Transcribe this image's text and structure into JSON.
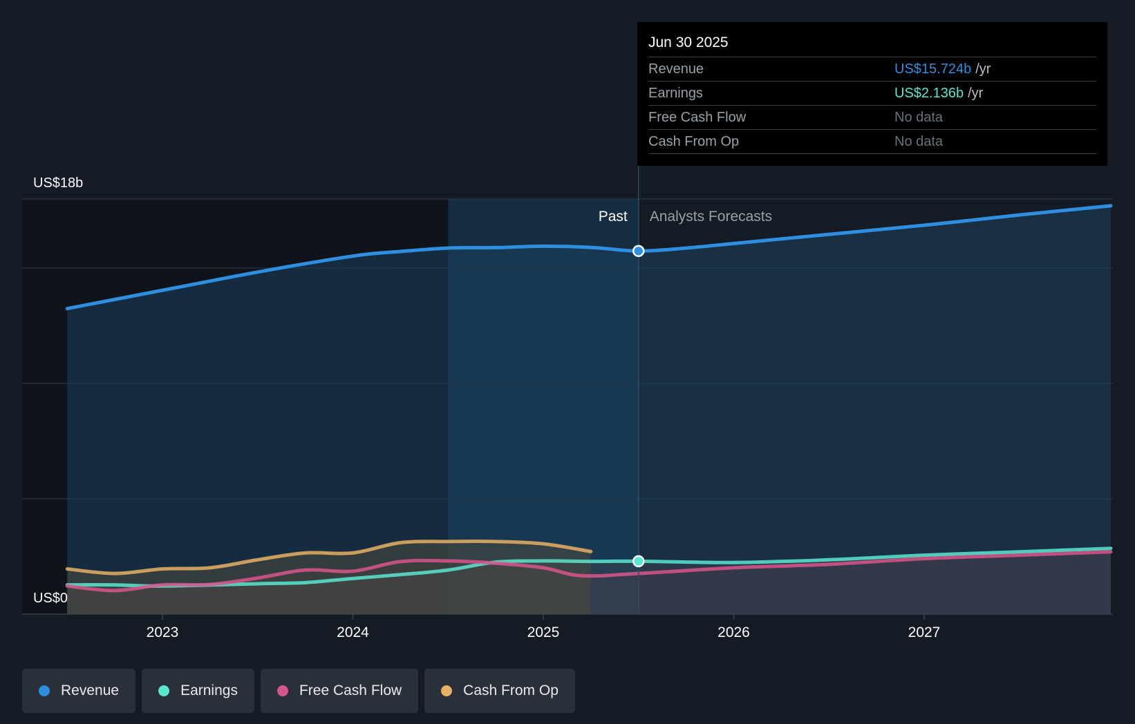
{
  "chart_data": {
    "type": "area",
    "title": "",
    "y_axis": {
      "top_label": "US$18b",
      "bottom_label": "US$0",
      "ylim": [
        0,
        18
      ]
    },
    "x_axis": {
      "ticks": [
        "2023",
        "2024",
        "2025",
        "2026",
        "2027"
      ],
      "tick_values": [
        2023,
        2024,
        2025,
        2026,
        2027
      ],
      "xlim": [
        2022.3,
        2027.98
      ]
    },
    "divider": {
      "x": 2025.5,
      "past_label": "Past",
      "forecast_label": "Analysts Forecasts",
      "highlight_start": 2024.5
    },
    "series": [
      {
        "name": "Revenue",
        "color": "#2e8fe0",
        "points": [
          [
            2022.5,
            13.2
          ],
          [
            2023,
            14.0
          ],
          [
            2023.5,
            14.8
          ],
          [
            2024,
            15.5
          ],
          [
            2024.25,
            15.7
          ],
          [
            2024.5,
            15.85
          ],
          [
            2024.75,
            15.87
          ],
          [
            2025,
            15.93
          ],
          [
            2025.25,
            15.88
          ],
          [
            2025.5,
            15.72
          ],
          [
            2025.75,
            15.85
          ],
          [
            2026,
            16.05
          ],
          [
            2026.5,
            16.45
          ],
          [
            2027,
            16.85
          ],
          [
            2027.5,
            17.3
          ],
          [
            2027.98,
            17.7
          ]
        ]
      },
      {
        "name": "Earnings",
        "color": "#5ae6d0",
        "points": [
          [
            2022.5,
            1.1
          ],
          [
            2022.75,
            1.1
          ],
          [
            2023,
            1.05
          ],
          [
            2023.5,
            1.15
          ],
          [
            2023.75,
            1.2
          ],
          [
            2024,
            1.38
          ],
          [
            2024.25,
            1.55
          ],
          [
            2024.5,
            1.75
          ],
          [
            2024.75,
            2.1
          ],
          [
            2025,
            2.15
          ],
          [
            2025.25,
            2.13
          ],
          [
            2025.5,
            2.136
          ],
          [
            2026,
            2.08
          ],
          [
            2026.5,
            2.2
          ],
          [
            2027,
            2.4
          ],
          [
            2027.5,
            2.55
          ],
          [
            2027.98,
            2.7
          ]
        ]
      },
      {
        "name": "Free Cash Flow",
        "color": "#d9558c",
        "points": [
          [
            2022.5,
            1.05
          ],
          [
            2022.75,
            0.85
          ],
          [
            2023,
            1.1
          ],
          [
            2023.25,
            1.12
          ],
          [
            2023.5,
            1.4
          ],
          [
            2023.75,
            1.75
          ],
          [
            2024,
            1.7
          ],
          [
            2024.25,
            2.12
          ],
          [
            2024.5,
            2.15
          ],
          [
            2024.75,
            2.05
          ],
          [
            2025,
            1.85
          ],
          [
            2025.2,
            1.5
          ],
          [
            2025.5,
            1.6
          ],
          [
            2026,
            1.85
          ],
          [
            2026.5,
            2.0
          ],
          [
            2027,
            2.25
          ],
          [
            2027.5,
            2.4
          ],
          [
            2027.98,
            2.55
          ]
        ]
      },
      {
        "name": "Cash From Op",
        "color": "#e8b063",
        "points": [
          [
            2022.5,
            1.8
          ],
          [
            2022.75,
            1.6
          ],
          [
            2023,
            1.8
          ],
          [
            2023.25,
            1.85
          ],
          [
            2023.5,
            2.2
          ],
          [
            2023.75,
            2.5
          ],
          [
            2024,
            2.5
          ],
          [
            2024.25,
            2.95
          ],
          [
            2024.5,
            3.0
          ],
          [
            2024.75,
            3.0
          ],
          [
            2025,
            2.9
          ],
          [
            2025.25,
            2.56
          ]
        ]
      }
    ]
  },
  "tooltip": {
    "date": "Jun 30 2025",
    "rows": [
      {
        "label": "Revenue",
        "value": "US$15.724b",
        "unit": "/yr",
        "color": "#2e8fe0"
      },
      {
        "label": "Earnings",
        "value": "US$2.136b",
        "unit": "/yr",
        "color": "#5ae6d0"
      },
      {
        "label": "Free Cash Flow",
        "value": "No data",
        "unit": "",
        "color": "#6b7079"
      },
      {
        "label": "Cash From Op",
        "value": "No data",
        "unit": "",
        "color": "#6b7079"
      }
    ]
  },
  "legend": [
    {
      "label": "Revenue",
      "color": "#2e8fe0"
    },
    {
      "label": "Earnings",
      "color": "#5ae6d0"
    },
    {
      "label": "Free Cash Flow",
      "color": "#d9558c"
    },
    {
      "label": "Cash From Op",
      "color": "#e8b063"
    }
  ]
}
